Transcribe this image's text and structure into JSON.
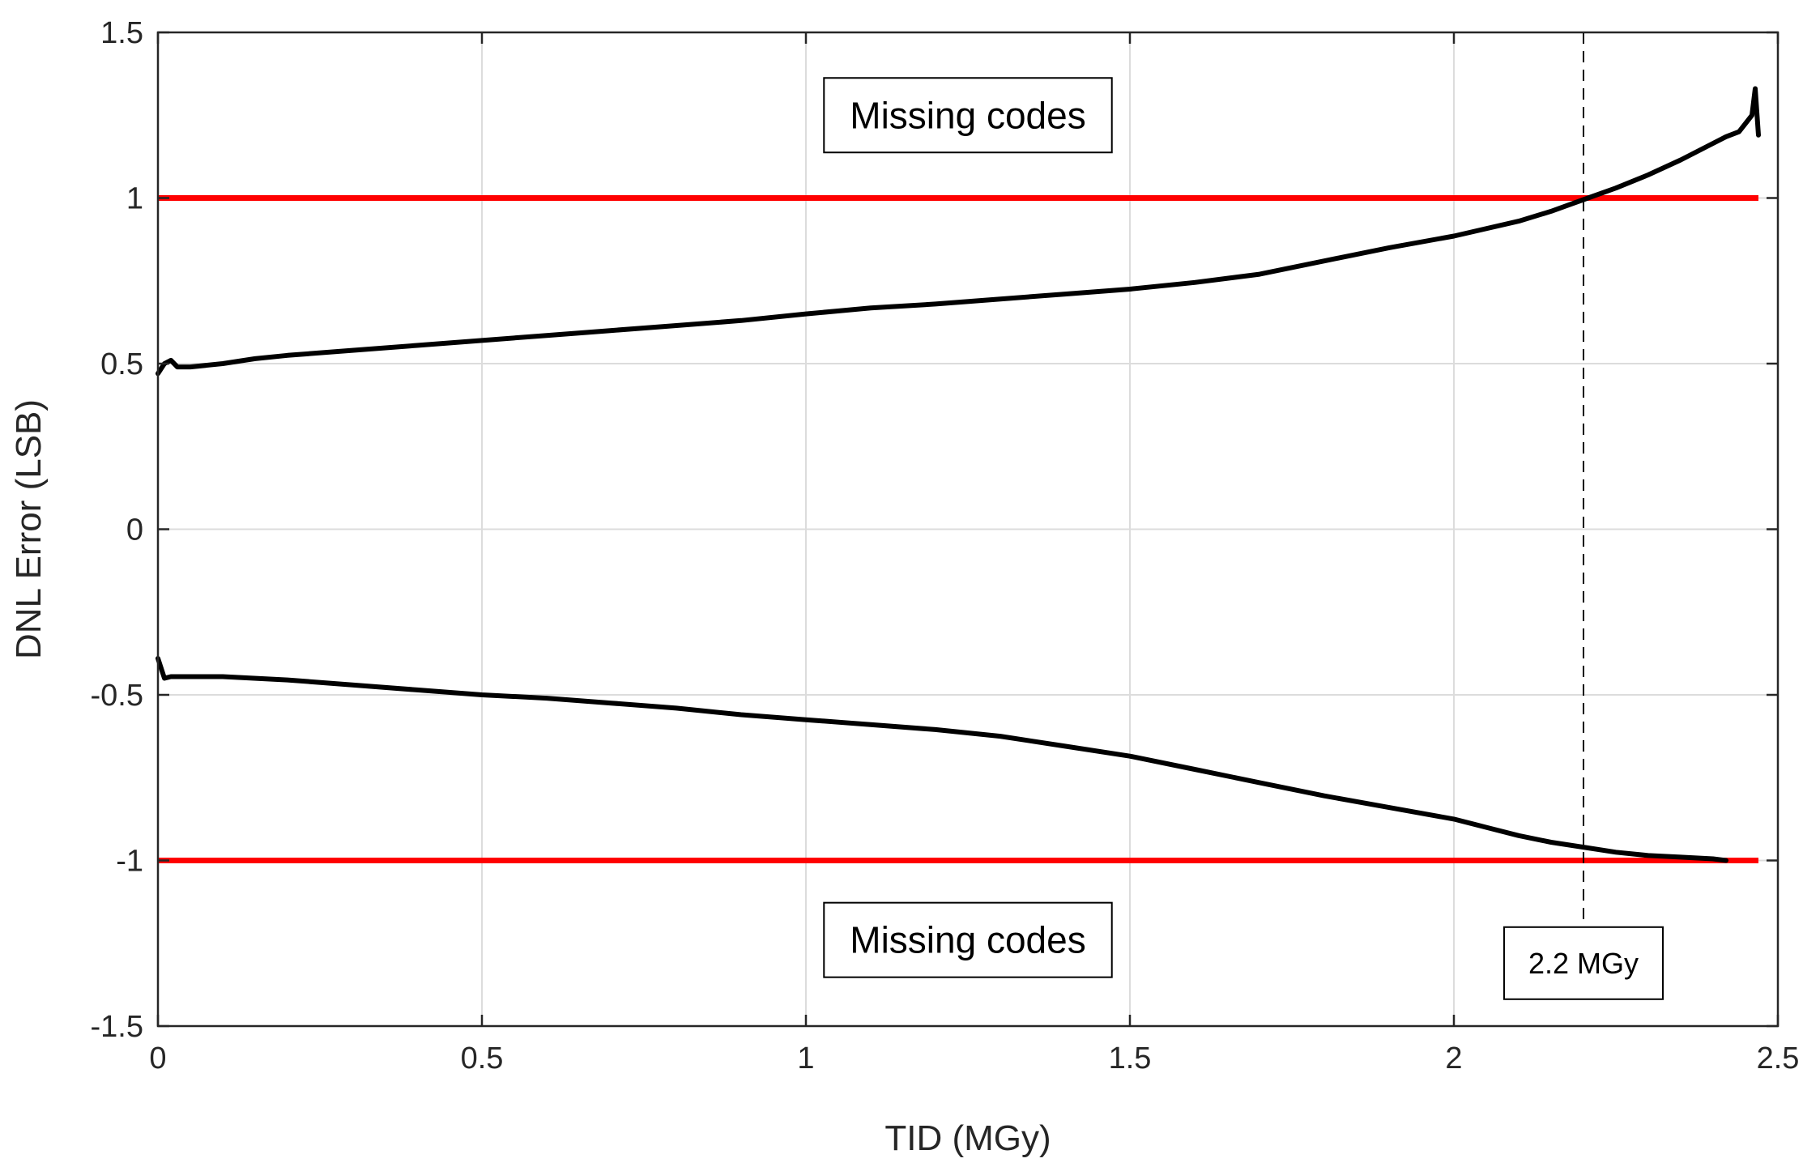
{
  "chart_data": {
    "type": "line",
    "title": "",
    "xlabel": "TID (MGy)",
    "ylabel": "DNL Error (LSB)",
    "xlim": [
      0,
      2.5
    ],
    "ylim": [
      -1.5,
      1.5
    ],
    "xticks": [
      0,
      0.5,
      1,
      1.5,
      2,
      2.5
    ],
    "yticks": [
      -1.5,
      -1,
      -0.5,
      0,
      0.5,
      1,
      1.5
    ],
    "xtick_labels": [
      "0",
      "0.5",
      "1",
      "1.5",
      "2",
      "2.5"
    ],
    "ytick_labels": [
      "-1.5",
      "-1",
      "-0.5",
      "0",
      "0.5",
      "1",
      "1.5"
    ],
    "grid": true,
    "legend": "none",
    "colors": {
      "data": "#000000",
      "limit": "#ff0000",
      "grid": "#dcdcdc",
      "axis": "#262626"
    },
    "series": [
      {
        "x": [
          0,
          0.01,
          0.02,
          0.03,
          0.05,
          0.1,
          0.15,
          0.2,
          0.3,
          0.4,
          0.5,
          0.6,
          0.7,
          0.8,
          0.9,
          1.0,
          1.1,
          1.2,
          1.3,
          1.4,
          1.5,
          1.6,
          1.7,
          1.8,
          1.9,
          2.0,
          2.1,
          2.15,
          2.2,
          2.25,
          2.3,
          2.35,
          2.4,
          2.42,
          2.44,
          2.46,
          2.465,
          2.47
        ],
        "y": [
          0.47,
          0.5,
          0.51,
          0.49,
          0.49,
          0.5,
          0.515,
          0.525,
          0.54,
          0.555,
          0.57,
          0.585,
          0.6,
          0.615,
          0.63,
          0.65,
          0.668,
          0.68,
          0.695,
          0.71,
          0.725,
          0.745,
          0.77,
          0.81,
          0.85,
          0.885,
          0.93,
          0.96,
          0.995,
          1.03,
          1.07,
          1.115,
          1.165,
          1.185,
          1.2,
          1.25,
          1.33,
          1.19
        ]
      },
      {
        "x": [
          0,
          0.01,
          0.02,
          0.05,
          0.1,
          0.2,
          0.3,
          0.4,
          0.5,
          0.6,
          0.7,
          0.8,
          0.9,
          1.0,
          1.1,
          1.2,
          1.3,
          1.4,
          1.5,
          1.6,
          1.7,
          1.8,
          1.9,
          2.0,
          2.05,
          2.1,
          2.15,
          2.2,
          2.25,
          2.3,
          2.35,
          2.4,
          2.42
        ],
        "y": [
          -0.39,
          -0.45,
          -0.445,
          -0.445,
          -0.445,
          -0.455,
          -0.47,
          -0.485,
          -0.5,
          -0.51,
          -0.525,
          -0.54,
          -0.56,
          -0.575,
          -0.59,
          -0.605,
          -0.625,
          -0.655,
          -0.685,
          -0.725,
          -0.765,
          -0.805,
          -0.84,
          -0.875,
          -0.9,
          -0.925,
          -0.945,
          -0.96,
          -0.975,
          -0.985,
          -0.99,
          -0.995,
          -1.0
        ]
      }
    ],
    "reference_lines": [
      {
        "orientation": "horizontal",
        "y": 1,
        "x_range": [
          0,
          2.47
        ]
      },
      {
        "orientation": "horizontal",
        "y": -1,
        "x_range": [
          0,
          2.47
        ]
      },
      {
        "orientation": "vertical",
        "x": 2.2,
        "y_range": [
          -1.3,
          1.5
        ],
        "style": "dashed"
      }
    ],
    "annotations": [
      {
        "text": "Missing codes",
        "x": 1.25,
        "y": 1.25
      },
      {
        "text": "Missing codes",
        "x": 1.25,
        "y": -1.24
      },
      {
        "text": "2.2 MGy",
        "x": 2.2,
        "y": -1.31
      }
    ]
  }
}
